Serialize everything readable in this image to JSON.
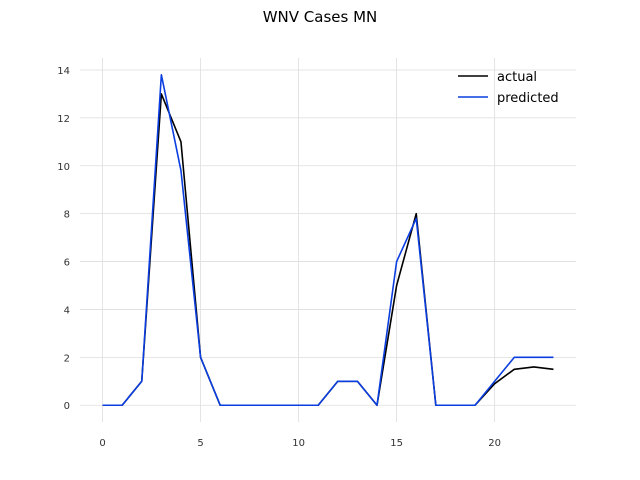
{
  "chart_data": {
    "type": "line",
    "title": "WNV Cases MN",
    "xlabel": "",
    "ylabel": "",
    "x": [
      0,
      1,
      2,
      3,
      4,
      5,
      6,
      7,
      8,
      9,
      10,
      11,
      12,
      13,
      14,
      15,
      16,
      17,
      18,
      19,
      20,
      21,
      22,
      23
    ],
    "xlim": [
      -1.15,
      24.15
    ],
    "ylim": [
      -0.7,
      14.5
    ],
    "xticks": [
      0,
      5,
      10,
      15,
      20
    ],
    "yticks": [
      0,
      2,
      4,
      6,
      8,
      10,
      12,
      14
    ],
    "grid": true,
    "legend_position": "top-right",
    "series": [
      {
        "name": "actual",
        "color": "#000000",
        "values": [
          0,
          0,
          1,
          13,
          11,
          2,
          0,
          0,
          0,
          0,
          0,
          0,
          1,
          1,
          0,
          5,
          8,
          0,
          0,
          0,
          0.9,
          1.5,
          1.6,
          1.5
        ]
      },
      {
        "name": "predicted",
        "color": "#0b3ee0",
        "values": [
          0,
          0,
          1,
          13.8,
          9.8,
          2,
          0,
          0,
          0,
          0,
          0,
          0,
          1,
          1,
          0,
          6,
          7.8,
          0,
          0,
          0,
          1,
          2,
          2,
          2
        ]
      }
    ]
  }
}
